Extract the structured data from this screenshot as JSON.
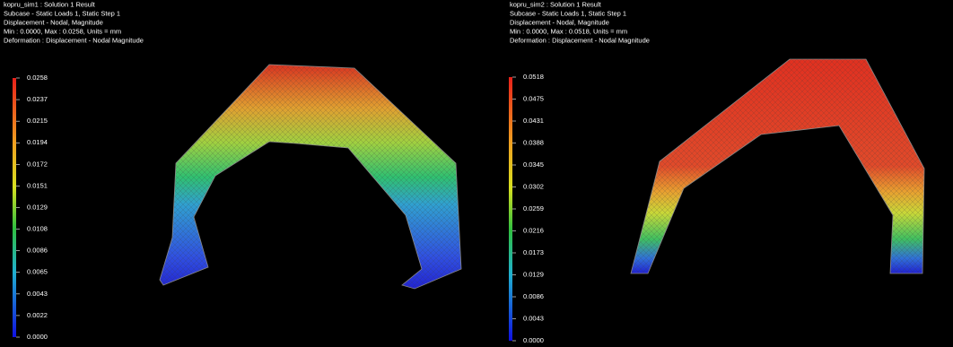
{
  "panels": [
    {
      "header": [
        "kopru_sim1 : Solution 1 Result",
        "Subcase - Static Loads 1, Static Step 1",
        "Displacement - Nodal, Magnitude",
        "Min : 0.0000, Max : 0.0258, Units = mm",
        "Deformation : Displacement - Nodal Magnitude"
      ],
      "legend": [
        "0.0258",
        "0.0237",
        "0.0215",
        "0.0194",
        "0.0172",
        "0.0151",
        "0.0129",
        "0.0108",
        "0.0086",
        "0.0065",
        "0.0043",
        "0.0022",
        "0.0000"
      ]
    },
    {
      "header": [
        "kopru_sim2 : Solution 1 Result",
        "Subcase - Static Loads 1, Static Step 1",
        "Displacement - Nodal, Magnitude",
        "Min : 0.0000, Max : 0.0518, Units = mm",
        "Deformation : Displacement - Nodal Magnitude"
      ],
      "legend": [
        "0.0518",
        "0.0475",
        "0.0431",
        "0.0388",
        "0.0345",
        "0.0302",
        "0.0259",
        "0.0216",
        "0.0173",
        "0.0129",
        "0.0086",
        "0.0043",
        "0.0000"
      ]
    }
  ]
}
